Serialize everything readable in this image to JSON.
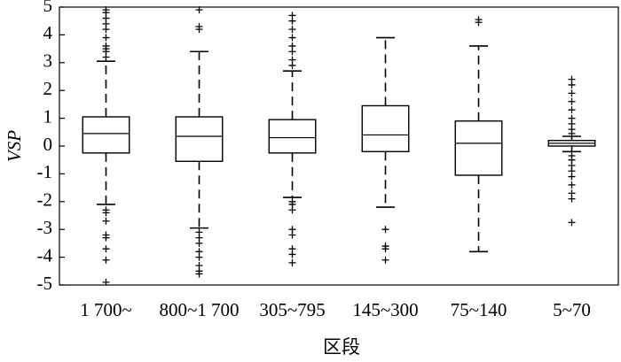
{
  "chart_data": {
    "type": "box",
    "xlabel": "区段",
    "ylabel": "VSP",
    "categories": [
      "1 700~",
      "800~1 700",
      "305~795",
      "145~300",
      "75~140",
      "5~70"
    ],
    "boxes": [
      {
        "min": -2.1,
        "q1": -0.25,
        "median": 0.45,
        "q3": 1.05,
        "max": 3.05,
        "outliers": [
          3.2,
          3.4,
          3.5,
          3.6,
          3.9,
          4.2,
          4.4,
          4.6,
          4.8,
          4.9,
          -2.3,
          -2.4,
          -2.7,
          -3.2,
          -3.3,
          -3.7,
          -4.1,
          -4.9
        ]
      },
      {
        "min": -2.95,
        "q1": -0.55,
        "median": 0.35,
        "q3": 1.05,
        "max": 3.4,
        "outliers": [
          4.2,
          4.3,
          4.9,
          -3.1,
          -3.3,
          -3.5,
          -3.8,
          -4.0,
          -4.3,
          -4.5,
          -4.6
        ]
      },
      {
        "min": -1.85,
        "q1": -0.25,
        "median": 0.3,
        "q3": 0.95,
        "max": 2.7,
        "outliers": [
          2.9,
          3.1,
          3.4,
          3.6,
          3.9,
          4.2,
          4.5,
          4.7,
          -2.0,
          -2.1,
          -2.3,
          -3.0,
          -3.2,
          -3.7,
          -3.9,
          -4.2
        ]
      },
      {
        "min": -2.2,
        "q1": -0.2,
        "median": 0.4,
        "q3": 1.45,
        "max": 3.9,
        "outliers": [
          -3.0,
          -3.6,
          -3.7,
          -4.1
        ]
      },
      {
        "min": -3.8,
        "q1": -1.05,
        "median": 0.1,
        "q3": 0.9,
        "max": 3.6,
        "outliers": [
          4.45,
          4.55
        ]
      },
      {
        "min": -0.2,
        "q1": 0.0,
        "median": 0.1,
        "q3": 0.2,
        "max": 0.35,
        "outliers": [
          0.45,
          0.6,
          0.8,
          1.0,
          1.3,
          1.6,
          1.9,
          2.2,
          2.4,
          -0.35,
          -0.5,
          -0.7,
          -0.9,
          -1.1,
          -1.4,
          -1.7,
          -1.9,
          -2.75
        ]
      }
    ],
    "color": "#000000",
    "ylim": [
      -5,
      5
    ],
    "yticks": [
      -5,
      -4,
      -3,
      -2,
      -1,
      0,
      1,
      2,
      3,
      4,
      5
    ]
  }
}
